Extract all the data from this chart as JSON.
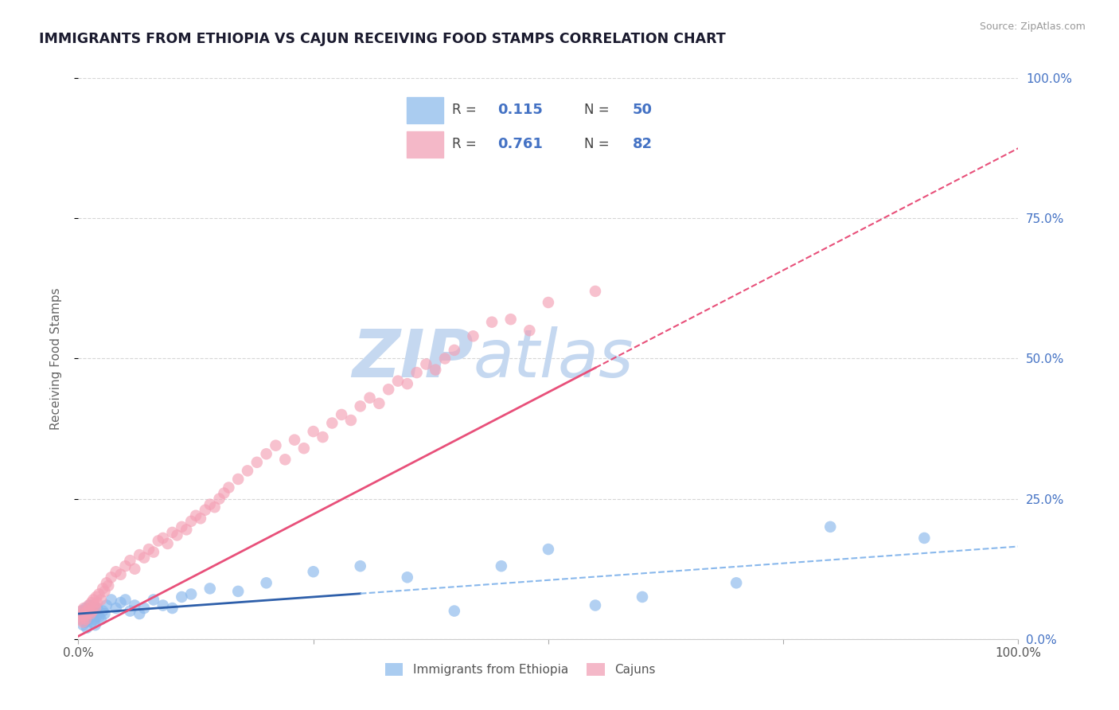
{
  "title": "IMMIGRANTS FROM ETHIOPIA VS CAJUN RECEIVING FOOD STAMPS CORRELATION CHART",
  "source": "Source: ZipAtlas.com",
  "ylabel": "Receiving Food Stamps",
  "watermark_zip": "ZIP",
  "watermark_atlas": "atlas",
  "series": [
    {
      "name": "Immigrants from Ethiopia",
      "R": 0.115,
      "N": 50,
      "color_scatter": "#89b8ec",
      "color_scatter_edge": "#89b8ec",
      "color_line_solid": "#2e5faa",
      "color_line_dash": "#89b8ec",
      "x": [
        0.3,
        0.4,
        0.5,
        0.6,
        0.7,
        0.8,
        0.9,
        1.0,
        1.1,
        1.2,
        1.3,
        1.4,
        1.5,
        1.6,
        1.7,
        1.8,
        1.9,
        2.0,
        2.2,
        2.4,
        2.6,
        2.8,
        3.0,
        3.5,
        4.0,
        4.5,
        5.0,
        5.5,
        6.0,
        6.5,
        7.0,
        8.0,
        9.0,
        10.0,
        11.0,
        12.0,
        14.0,
        17.0,
        20.0,
        25.0,
        30.0,
        35.0,
        40.0,
        45.0,
        50.0,
        55.0,
        60.0,
        70.0,
        80.0,
        90.0
      ],
      "y": [
        3.5,
        5.0,
        2.5,
        4.0,
        3.0,
        5.5,
        2.0,
        4.5,
        3.5,
        6.0,
        4.0,
        3.0,
        5.0,
        4.5,
        3.5,
        2.5,
        4.0,
        5.5,
        4.0,
        3.5,
        5.0,
        4.5,
        6.0,
        7.0,
        5.5,
        6.5,
        7.0,
        5.0,
        6.0,
        4.5,
        5.5,
        7.0,
        6.0,
        5.5,
        7.5,
        8.0,
        9.0,
        8.5,
        10.0,
        12.0,
        13.0,
        11.0,
        5.0,
        13.0,
        16.0,
        6.0,
        7.5,
        10.0,
        20.0,
        18.0
      ],
      "solid_x_max": 30.0,
      "trend_intercept": 4.5,
      "trend_slope": 0.12
    },
    {
      "name": "Cajuns",
      "R": 0.761,
      "N": 82,
      "color_scatter": "#f4a0b5",
      "color_scatter_edge": "#f4a0b5",
      "color_line_solid": "#e8507a",
      "color_line_dash": "#e8507a",
      "x": [
        0.1,
        0.2,
        0.3,
        0.4,
        0.5,
        0.6,
        0.7,
        0.8,
        0.9,
        1.0,
        1.1,
        1.2,
        1.3,
        1.4,
        1.5,
        1.6,
        1.7,
        1.8,
        1.9,
        2.0,
        2.2,
        2.4,
        2.6,
        2.8,
        3.0,
        3.2,
        3.5,
        4.0,
        4.5,
        5.0,
        5.5,
        6.0,
        6.5,
        7.0,
        7.5,
        8.0,
        8.5,
        9.0,
        9.5,
        10.0,
        10.5,
        11.0,
        11.5,
        12.0,
        12.5,
        13.0,
        13.5,
        14.0,
        14.5,
        15.0,
        15.5,
        16.0,
        17.0,
        18.0,
        19.0,
        20.0,
        21.0,
        22.0,
        23.0,
        24.0,
        25.0,
        26.0,
        27.0,
        28.0,
        29.0,
        30.0,
        31.0,
        32.0,
        33.0,
        34.0,
        35.0,
        36.0,
        37.0,
        38.0,
        39.0,
        40.0,
        42.0,
        44.0,
        46.0,
        48.0,
        50.0,
        55.0
      ],
      "y": [
        4.0,
        3.5,
        5.0,
        4.5,
        3.0,
        5.5,
        4.0,
        3.5,
        5.0,
        4.5,
        6.0,
        5.5,
        4.5,
        6.5,
        5.0,
        7.0,
        6.0,
        5.5,
        7.5,
        6.5,
        8.0,
        7.0,
        9.0,
        8.5,
        10.0,
        9.5,
        11.0,
        12.0,
        11.5,
        13.0,
        14.0,
        12.5,
        15.0,
        14.5,
        16.0,
        15.5,
        17.5,
        18.0,
        17.0,
        19.0,
        18.5,
        20.0,
        19.5,
        21.0,
        22.0,
        21.5,
        23.0,
        24.0,
        23.5,
        25.0,
        26.0,
        27.0,
        28.5,
        30.0,
        31.5,
        33.0,
        34.5,
        32.0,
        35.5,
        34.0,
        37.0,
        36.0,
        38.5,
        40.0,
        39.0,
        41.5,
        43.0,
        42.0,
        44.5,
        46.0,
        45.5,
        47.5,
        49.0,
        48.0,
        50.0,
        51.5,
        54.0,
        56.5,
        57.0,
        55.0,
        60.0,
        62.0
      ],
      "solid_x_max": 55.0,
      "trend_intercept": 0.5,
      "trend_slope": 0.87
    }
  ],
  "xlim": [
    0,
    100
  ],
  "ylim": [
    0,
    100
  ],
  "x_ticks": [
    0,
    25,
    50,
    75,
    100
  ],
  "x_tick_labels": [
    "0.0%",
    "",
    "",
    "",
    "100.0%"
  ],
  "y_ticks_right": [
    0,
    25,
    50,
    75,
    100
  ],
  "y_tick_labels_right": [
    "0.0%",
    "25.0%",
    "50.0%",
    "75.0%",
    "100.0%"
  ],
  "background_color": "#ffffff",
  "grid_color": "#cccccc",
  "title_color": "#1a1a2e",
  "title_fontsize": 12.5,
  "ylabel_fontsize": 11,
  "right_tick_color": "#4472c4",
  "watermark_color_zip": "#c5d8f0",
  "watermark_color_atlas": "#c5d8f0",
  "watermark_fontsize": 60,
  "scatter_size": 110,
  "scatter_alpha": 0.65,
  "legend_box_color": "#f5f5f5",
  "legend_edge_color": "#cccccc",
  "legend_blue_patch": "#aaccf0",
  "legend_pink_patch": "#f4b8c8",
  "legend_R_N_color": "#4472c4",
  "legend_label_color": "#444444"
}
